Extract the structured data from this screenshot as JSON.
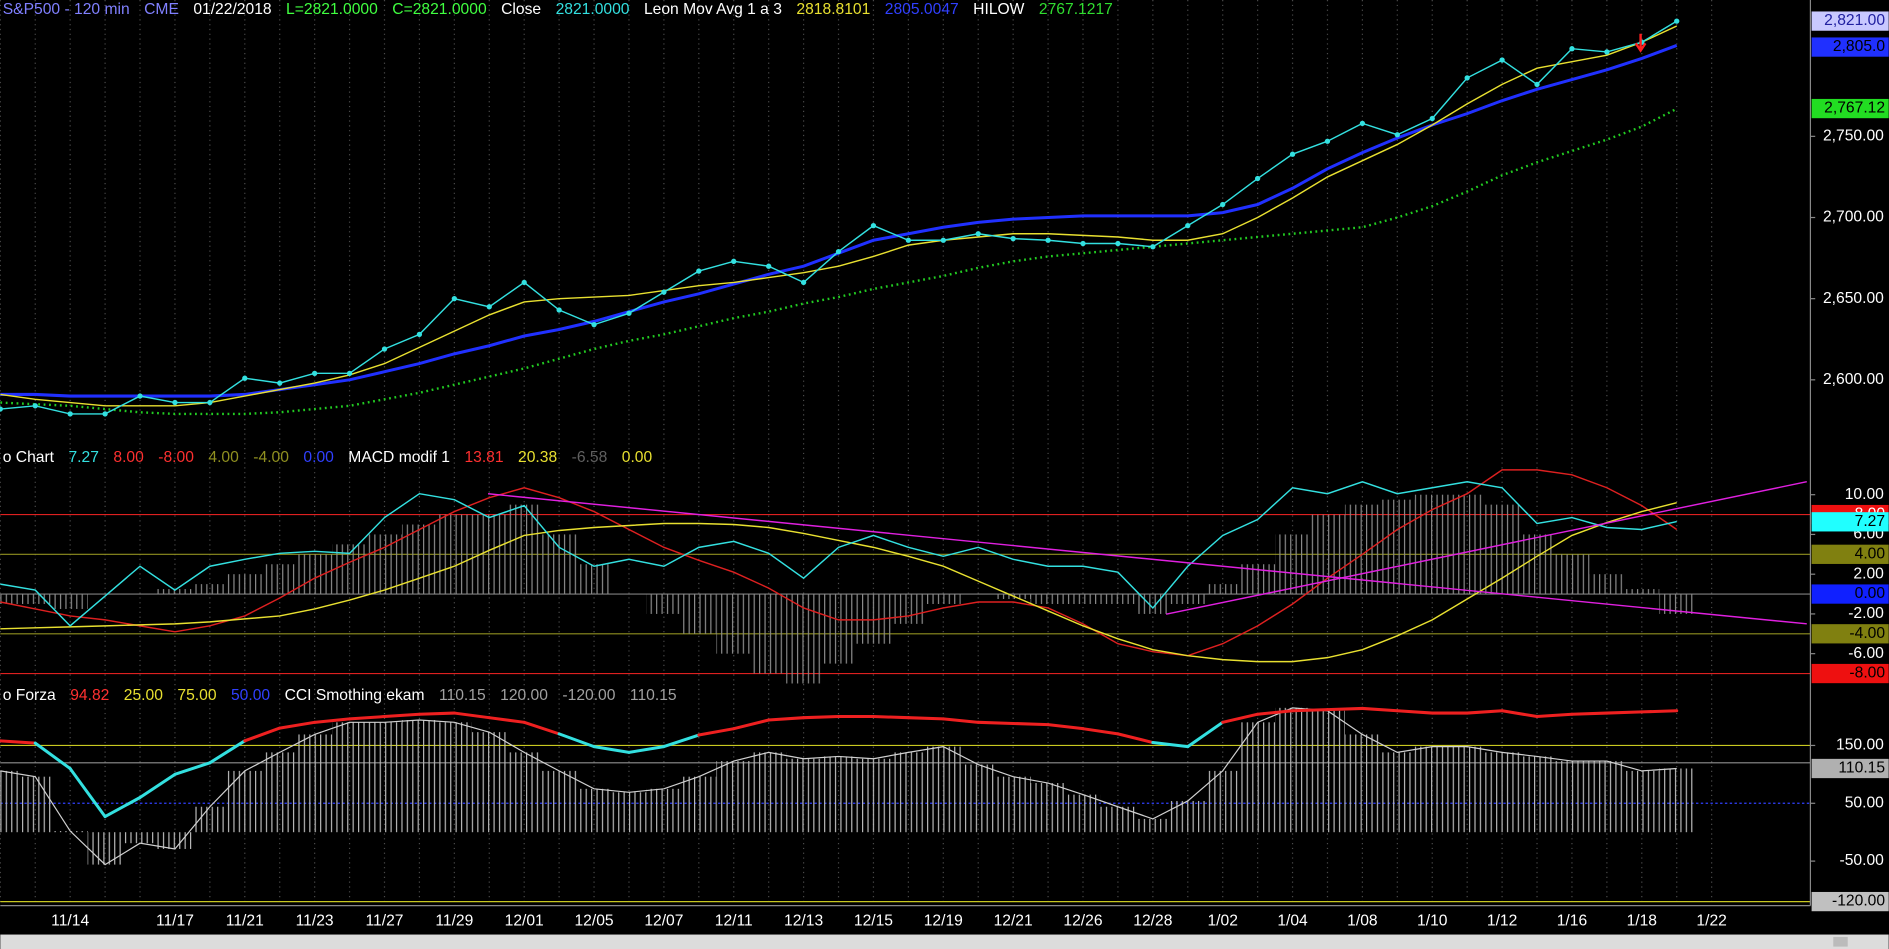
{
  "chart_data": [
    {
      "type": "line",
      "header": [
        {
          "text": "S&P500 - 120 min",
          "color": "#8080ff"
        },
        {
          "text": "CME",
          "color": "#8080ff"
        },
        {
          "text": "01/22/2018",
          "color": "#ffffff"
        },
        {
          "text": "L=2821.0000",
          "color": "#40ff40"
        },
        {
          "text": "C=2821.0000",
          "color": "#40ff40"
        },
        {
          "text": "Close",
          "color": "#ffffff"
        },
        {
          "text": "2821.0000",
          "color": "#33e0e0"
        },
        {
          "text": "Leon Mov Avg 1 a 3",
          "color": "#ffffff"
        },
        {
          "text": "2818.8101",
          "color": "#e8e030"
        },
        {
          "text": "2805.0047",
          "color": "#3040ff"
        },
        {
          "text": "HILOW",
          "color": "#ffffff"
        },
        {
          "text": "2767.1217",
          "color": "#30dd30"
        }
      ],
      "categories": [
        null,
        null,
        "11/14",
        null,
        null,
        "11/17",
        null,
        "11/21",
        null,
        "11/23",
        null,
        "11/27",
        null,
        "11/29",
        null,
        "12/01",
        null,
        "12/05",
        null,
        "12/07",
        null,
        "12/11",
        null,
        "12/13",
        null,
        "12/15",
        null,
        "12/19",
        null,
        "12/21",
        null,
        "12/26",
        null,
        "12/28",
        null,
        "1/02",
        null,
        "1/04",
        null,
        "1/08",
        null,
        "1/10",
        null,
        "1/12",
        null,
        "1/16",
        null,
        "1/18",
        null,
        "1/22"
      ],
      "series": [
        {
          "color": "#2030ff",
          "style": "line-thick",
          "values": [
            2591,
            2591,
            2590,
            2590,
            2590,
            2590,
            2590,
            2591,
            2594,
            2597,
            2600,
            2605,
            2610,
            2616,
            2621,
            2627,
            2631,
            2636,
            2642,
            2648,
            2653,
            2659,
            2665,
            2670,
            2678,
            2686,
            2690,
            2694,
            2697,
            2699,
            2700,
            2701,
            2701,
            2701,
            2701,
            2703,
            2708,
            2718,
            2730,
            2740,
            2749,
            2757,
            2764,
            2772,
            2779,
            2785,
            2791,
            2798,
            2806,
            null
          ]
        },
        {
          "color": "#e8e030",
          "style": "line",
          "values": [
            2591,
            2588,
            2586,
            2584,
            2584,
            2584,
            2586,
            2590,
            2594,
            2598,
            2603,
            2610,
            2620,
            2630,
            2640,
            2648,
            2650,
            2651,
            2652,
            2655,
            2658,
            2660,
            2663,
            2666,
            2670,
            2676,
            2683,
            2686,
            2688,
            2690,
            2690,
            2689,
            2688,
            2686,
            2686,
            2690,
            2700,
            2712,
            2725,
            2735,
            2745,
            2757,
            2770,
            2782,
            2792,
            2796,
            2800,
            2808,
            2818,
            null
          ]
        },
        {
          "color": "#22cc22",
          "style": "dotted",
          "values": [
            2586,
            2585,
            2584,
            2582,
            2580,
            2579,
            2579,
            2579,
            2580,
            2582,
            2584,
            2588,
            2592,
            2597,
            2602,
            2607,
            2613,
            2619,
            2624,
            2628,
            2633,
            2638,
            2642,
            2647,
            2651,
            2656,
            2660,
            2664,
            2669,
            2673,
            2676,
            2678,
            2680,
            2682,
            2684,
            2686,
            2688,
            2690,
            2692,
            2694,
            2700,
            2707,
            2716,
            2726,
            2734,
            2741,
            2748,
            2756,
            2767,
            null
          ]
        },
        {
          "color": "#33e0e0",
          "style": "line-dots",
          "values": [
            2582,
            2584,
            2579,
            2579,
            2590,
            2586,
            2586,
            2601,
            2598,
            2604,
            2604,
            2619,
            2628,
            2650,
            2645,
            2660,
            2643,
            2634,
            2641,
            2654,
            2667,
            2673,
            2670,
            2660,
            2679,
            2695,
            2686,
            2686,
            2690,
            2687,
            2686,
            2684,
            2684,
            2682,
            2695,
            2708,
            2724,
            2739,
            2747,
            2758,
            2751,
            2761,
            2786,
            2797,
            2782,
            2804,
            2802,
            2808,
            2821,
            null
          ]
        }
      ],
      "ylim": [
        2558,
        2834
      ],
      "yticks": [
        {
          "value": 2600,
          "label": "2,600.00"
        },
        {
          "value": 2650,
          "label": "2,650.00"
        },
        {
          "value": 2700,
          "label": "2,700.00"
        },
        {
          "value": 2750,
          "label": "2,750.00"
        }
      ],
      "markers": [
        {
          "value": 2821,
          "label": "2,821.00",
          "color": "#c8c8ff",
          "text_color": "#2020a0"
        },
        {
          "value": 2805,
          "label": "2,805.0",
          "color": "#2030ff",
          "text_color": "#000000"
        },
        {
          "value": 2767.12,
          "label": "2,767.12",
          "color": "#22dd22",
          "text_color": "#000000"
        }
      ],
      "grid": true
    },
    {
      "type": "line",
      "header": [
        {
          "text": "o Chart",
          "color": "#ffffff"
        },
        {
          "text": "7.27",
          "color": "#33e0e0"
        },
        {
          "text": "8.00",
          "color": "#ff3030"
        },
        {
          "text": "-8.00",
          "color": "#ff3030"
        },
        {
          "text": "4.00",
          "color": "#909020"
        },
        {
          "text": "-4.00",
          "color": "#909020"
        },
        {
          "text": "0.00",
          "color": "#3040ff"
        },
        {
          "text": "MACD modif 1",
          "color": "#ffffff"
        },
        {
          "text": "13.81",
          "color": "#ff3030"
        },
        {
          "text": "20.38",
          "color": "#e8e030"
        },
        {
          "text": "-6.58",
          "color": "#606060"
        },
        {
          "text": "0.00",
          "color": "#e8e030"
        }
      ],
      "series": [
        {
          "color": "#8a8a8a",
          "style": "histogram",
          "values": [
            -1,
            -1,
            -1.5,
            0,
            0,
            0.5,
            1,
            2,
            3,
            4,
            5,
            6,
            7,
            8,
            8,
            9,
            6,
            3,
            0,
            -2,
            -4,
            -6,
            -8,
            -9,
            -7,
            -5,
            -3,
            -1,
            0,
            -0.5,
            -1,
            -1,
            -1,
            -2,
            -1,
            1,
            3,
            6,
            8,
            9,
            9.5,
            10,
            10,
            9,
            6,
            4,
            2,
            0.5,
            -2,
            null
          ]
        },
        {
          "color": "#dd2020",
          "style": "line",
          "values": [
            -0.8,
            -1.5,
            -2.2,
            -2.6,
            -3.2,
            -3.8,
            -3.2,
            -2.2,
            -0.4,
            1.6,
            3.2,
            4.7,
            6.5,
            8.3,
            9.7,
            10.7,
            9.7,
            8.3,
            6.5,
            4.7,
            3.4,
            2.2,
            0.6,
            -1.4,
            -2.6,
            -2.6,
            -2.2,
            -1.4,
            -0.8,
            -0.8,
            -1.4,
            -3.0,
            -5.0,
            -5.8,
            -6.2,
            -5.0,
            -3.2,
            -1.0,
            1.6,
            4.0,
            6.5,
            8.5,
            10.1,
            12.5,
            12.5,
            12.0,
            10.7,
            8.9,
            6.5,
            null
          ]
        },
        {
          "color": "#e8e030",
          "style": "line",
          "values": [
            -3.5,
            -3.4,
            -3.3,
            -3.2,
            -3.1,
            -3.0,
            -2.8,
            -2.5,
            -2.2,
            -1.5,
            -0.6,
            0.4,
            1.6,
            2.8,
            4.4,
            5.9,
            6.4,
            6.7,
            6.9,
            7.1,
            7.1,
            7.0,
            6.7,
            6.1,
            5.4,
            4.7,
            3.8,
            2.8,
            1.3,
            -0.2,
            -1.7,
            -3.2,
            -4.5,
            -5.6,
            -6.2,
            -6.6,
            -6.8,
            -6.8,
            -6.4,
            -5.6,
            -4.2,
            -2.6,
            -0.5,
            1.6,
            3.8,
            5.9,
            7.2,
            8.3,
            9.2,
            null
          ]
        },
        {
          "color": "#33e0e0",
          "style": "line",
          "values": [
            1.0,
            0.4,
            -3.2,
            -0.2,
            2.8,
            0.4,
            2.8,
            3.5,
            4.1,
            4.3,
            4.1,
            7.7,
            10.1,
            9.5,
            7.7,
            8.9,
            4.7,
            2.8,
            3.5,
            2.8,
            4.7,
            5.3,
            4.1,
            1.6,
            4.7,
            5.9,
            4.7,
            3.8,
            4.7,
            3.5,
            2.8,
            2.8,
            2.2,
            -1.4,
            2.8,
            5.9,
            7.5,
            10.7,
            10.1,
            11.3,
            10.1,
            10.7,
            11.3,
            10.7,
            7.1,
            7.7,
            6.7,
            6.5,
            7.3,
            null
          ]
        }
      ],
      "ylim": [
        -9.3,
        14.7
      ],
      "yticks": [
        {
          "value": 10,
          "label": "10.00"
        },
        {
          "value": 6,
          "label": "6.00"
        },
        {
          "value": 2,
          "label": "2.00"
        },
        {
          "value": -2,
          "label": "-2.00"
        },
        {
          "value": -6,
          "label": "-6.00"
        }
      ],
      "hlines": [
        {
          "value": 8,
          "color": "#dd2020"
        },
        {
          "value": 4,
          "color": "#909020"
        },
        {
          "value": 0,
          "color": "#808080"
        },
        {
          "value": -4,
          "color": "#909020"
        },
        {
          "value": -8,
          "color": "#dd2020"
        }
      ],
      "markers": [
        {
          "value": 8,
          "label": "8.00",
          "color": "#ee1010",
          "text_color": "#ffffff"
        },
        {
          "value": 7.27,
          "label": "7.27",
          "color": "#20ffff",
          "text_color": "#000000"
        },
        {
          "value": 4,
          "label": "4.00",
          "color": "#808010",
          "text_color": "#000000"
        },
        {
          "value": 0,
          "label": "0.00",
          "color": "#1020ff",
          "text_color": "#000000"
        },
        {
          "value": -4,
          "label": "-4.00",
          "color": "#808010",
          "text_color": "#000000"
        },
        {
          "value": -8,
          "label": "-8.00",
          "color": "#ee1010",
          "text_color": "#000000"
        }
      ]
    },
    {
      "type": "line",
      "header": [
        {
          "text": "o Forza",
          "color": "#ffffff"
        },
        {
          "text": "94.82",
          "color": "#ff3030"
        },
        {
          "text": "25.00",
          "color": "#e8e030"
        },
        {
          "text": "75.00",
          "color": "#e8e030"
        },
        {
          "text": "50.00",
          "color": "#3040ff"
        },
        {
          "text": "CCI Smothing ekam",
          "color": "#ffffff"
        },
        {
          "text": "110.15",
          "color": "#a0a0a0"
        },
        {
          "text": "120.00",
          "color": "#a0a0a0"
        },
        {
          "text": "-120.00",
          "color": "#a0a0a0"
        },
        {
          "text": "110.15",
          "color": "#a0a0a0"
        }
      ],
      "series": [
        {
          "color": "#d0d0d0",
          "style": "histogram-line",
          "values": [
            106,
            96,
            2,
            -56,
            -19,
            -29,
            44,
            106,
            138,
            169,
            190,
            190,
            194,
            190,
            173,
            138,
            106,
            75,
            69,
            75,
            96,
            123,
            138,
            127,
            131,
            127,
            138,
            148,
            117,
            96,
            85,
            65,
            44,
            23,
            54,
            106,
            190,
            215,
            210,
            169,
            138,
            148,
            148,
            138,
            131,
            123,
            123,
            106,
            110.15,
            null
          ]
        },
        {
          "color": "#ee2020",
          "color_below": "#33e0e0",
          "style": "threshold",
          "values": [
            158,
            154,
            110,
            27,
            60,
            100,
            120,
            158,
            180,
            190,
            196,
            200,
            204,
            206,
            198,
            190,
            170,
            148,
            138,
            148,
            168,
            179,
            194,
            198,
            200,
            200,
            198,
            196,
            190,
            188,
            186,
            179,
            170,
            155,
            148,
            190,
            204,
            210,
            212,
            214,
            210,
            206,
            206,
            210,
            200,
            204,
            206,
            208,
            210,
            null
          ]
        }
      ],
      "ylim": [
        -127,
        252
      ],
      "yticks": [
        {
          "value": 150,
          "label": "150.00"
        },
        {
          "value": 50,
          "label": "50.00"
        },
        {
          "value": -50,
          "label": "-50.00"
        }
      ],
      "hlines": [
        {
          "value": 150,
          "color": "#c8c820"
        },
        {
          "value": 120,
          "color": "#909090"
        },
        {
          "value": 50,
          "color": "#3040ff"
        },
        {
          "value": -120,
          "color": "#c8c820"
        }
      ],
      "markers": [
        {
          "value": 110.15,
          "label": "110.15",
          "color": "#b0b0b0",
          "text_color": "#000000"
        },
        {
          "value": -120,
          "label": "-120.00",
          "color": "#c0c0c0",
          "text_color": "#000000"
        }
      ]
    }
  ]
}
